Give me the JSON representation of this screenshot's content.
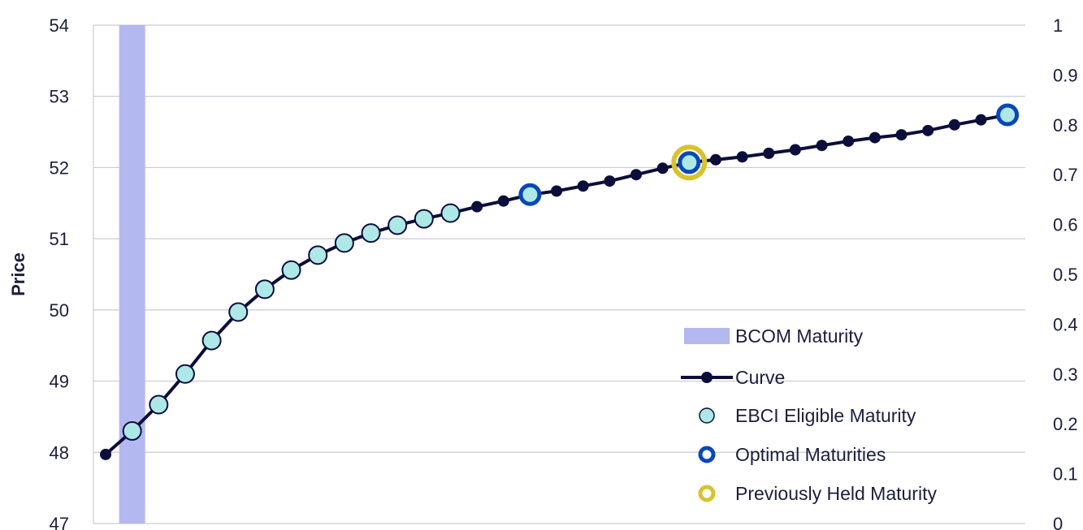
{
  "chart_data": {
    "type": "line",
    "ylabel": "Price",
    "ylim": [
      47,
      54
    ],
    "y_ticks": [
      "47",
      "48",
      "49",
      "50",
      "51",
      "52",
      "53",
      "54"
    ],
    "y2lim": [
      0,
      1
    ],
    "y2_ticks": [
      "0",
      "0.1",
      "0.2",
      "0.3",
      "0.4",
      "0.5",
      "0.6",
      "0.7",
      "0.8",
      "0.9",
      "1"
    ],
    "grid": true,
    "legend_position": "bottom-right",
    "colors": {
      "curve": "#0b0d3a",
      "bcom": "#b3b8f0",
      "ebci_fill": "#aee8e6",
      "optimal": "#0a47b8",
      "previous": "#d9c22e",
      "grid": "#c9ccd6",
      "text": "#1b1f3b"
    },
    "series": [
      {
        "name": "Curve",
        "values": [
          47.97,
          48.3,
          48.67,
          49.1,
          49.57,
          49.97,
          50.29,
          50.56,
          50.77,
          50.94,
          51.08,
          51.19,
          51.28,
          51.36,
          51.45,
          51.53,
          51.62,
          51.67,
          51.74,
          51.81,
          51.9,
          51.99,
          52.07,
          52.11,
          52.15,
          52.2,
          52.25,
          52.31,
          52.37,
          52.42,
          52.46,
          52.52,
          52.6,
          52.67,
          52.74
        ]
      }
    ],
    "ebci_eligible_index": [
      1,
      2,
      3,
      4,
      5,
      6,
      7,
      8,
      9,
      10,
      11,
      12,
      13,
      16,
      22,
      34
    ],
    "optimal_index": [
      16,
      22,
      34
    ],
    "previously_held_index": [
      22
    ],
    "bcom_index": 1,
    "legend": [
      {
        "key": "bcom",
        "label": "BCOM Maturity"
      },
      {
        "key": "curve",
        "label": "Curve"
      },
      {
        "key": "ebci",
        "label": "EBCI Eligible Maturity"
      },
      {
        "key": "optimal",
        "label": "Optimal Maturities"
      },
      {
        "key": "previous",
        "label": "Previously Held Maturity"
      }
    ]
  }
}
